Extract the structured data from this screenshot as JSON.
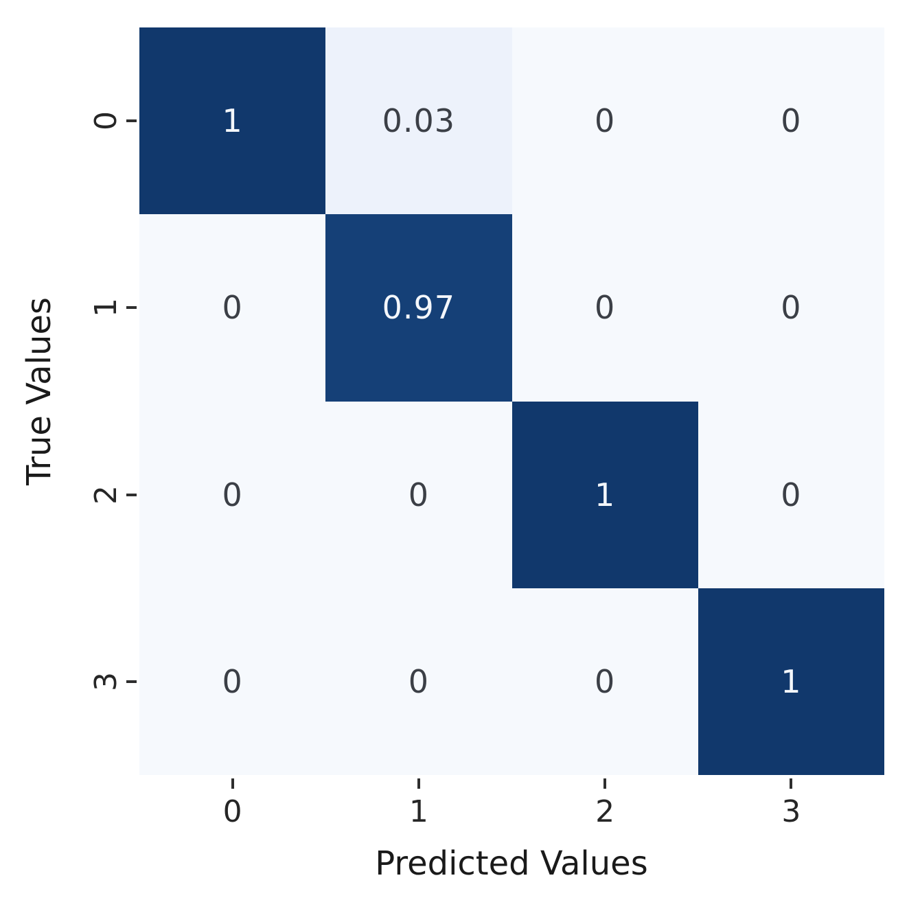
{
  "figure": {
    "background": "#ffffff"
  },
  "chart_data": {
    "type": "heatmap",
    "title": "",
    "xlabel": "Predicted Values",
    "ylabel": "True Values",
    "x_tick_labels": [
      "0",
      "1",
      "2",
      "3"
    ],
    "y_tick_labels": [
      "0",
      "1",
      "2",
      "3"
    ],
    "matrix": [
      [
        1,
        0.03,
        0,
        0
      ],
      [
        0,
        0.97,
        0,
        0
      ],
      [
        0,
        0,
        1,
        0
      ],
      [
        0,
        0,
        0,
        1
      ]
    ],
    "cell_labels": [
      [
        "1",
        "0.03",
        "0",
        "0"
      ],
      [
        "0",
        "0.97",
        "0",
        "0"
      ],
      [
        "0",
        "0",
        "1",
        "0"
      ],
      [
        "0",
        "0",
        "0",
        "1"
      ]
    ],
    "colormap": "Blues",
    "value_range": [
      0,
      1
    ],
    "grid": false,
    "legend": "none",
    "colors": {
      "cell_full": "#11386c",
      "cell_high": "#154077",
      "cell_low_tint": "#edf2fb",
      "cell_low": "#f6f9fd",
      "text_on_dark": "#f4f7fb",
      "text_on_light": "#3b3f46",
      "tick_mark": "#2e2e2e",
      "tick_text": "#262626",
      "label_text": "#1a1a1a"
    }
  }
}
